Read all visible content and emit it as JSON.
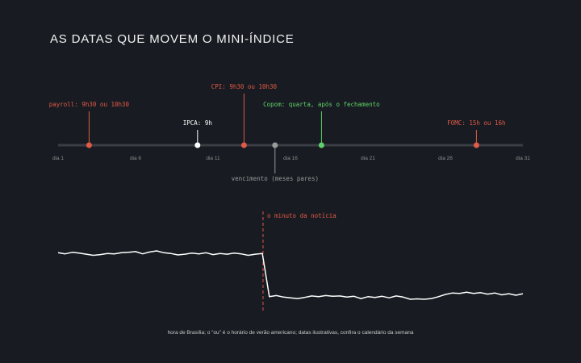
{
  "title": "AS DATAS QUE MOVEM O MINI-ÍNDICE",
  "timeline": {
    "day_labels": [
      "dia 1",
      "dia 6",
      "dia 11",
      "dia 16",
      "dia 21",
      "dia 26",
      "dia 31"
    ],
    "events": [
      {
        "id": "payroll",
        "label": "payroll: 9h30 ou 10h30",
        "day": 3,
        "color": "#e05a47",
        "dot": "#e05a47",
        "side": "above",
        "level": 2
      },
      {
        "id": "ipca",
        "label": "IPCA: 9h",
        "day": 10,
        "color": "#ffffff",
        "dot": "#ffffff",
        "side": "above",
        "level": 1
      },
      {
        "id": "cpi",
        "label": "CPI: 9h30 ou 10h30",
        "day": 13,
        "color": "#e05a47",
        "dot": "#e05a47",
        "side": "above",
        "level": 3
      },
      {
        "id": "vencimento",
        "label": "vencimento (meses pares)",
        "day": 15,
        "color": "#9a9a9a",
        "dot": "#9a9a9a",
        "side": "below",
        "level": 1
      },
      {
        "id": "copom",
        "label": "Copom: quarta, após o fechamento",
        "day": 18,
        "color": "#5fd16a",
        "dot": "#5fd16a",
        "side": "above",
        "level": 2
      },
      {
        "id": "fomc",
        "label": "FOMC: 15h ou 16h",
        "day": 28,
        "color": "#e05a47",
        "dot": "#e05a47",
        "side": "above",
        "level": 1
      }
    ]
  },
  "price_chart": {
    "annotation": "o minuto da notícia",
    "annotation_color": "#e05a47",
    "line_color": "#ffffff",
    "event_index": 30,
    "values": [
      100.2,
      99.9,
      100.3,
      100.1,
      99.8,
      99.5,
      99.7,
      100.0,
      99.9,
      100.2,
      100.3,
      100.5,
      99.9,
      100.4,
      100.7,
      100.2,
      100.0,
      99.6,
      99.8,
      100.1,
      99.9,
      100.2,
      99.7,
      100.0,
      99.8,
      100.1,
      99.9,
      99.5,
      99.8,
      100.0,
      88.3,
      88.6,
      88.2,
      88.0,
      87.8,
      88.1,
      88.5,
      88.3,
      88.6,
      88.4,
      88.5,
      88.2,
      88.4,
      87.8,
      88.3,
      88.1,
      88.4,
      88.0,
      88.5,
      88.2,
      87.6,
      87.7,
      87.6,
      87.8,
      88.3,
      88.9,
      89.3,
      89.2,
      89.5,
      89.2,
      89.4,
      89.0,
      89.3,
      88.8,
      89.1,
      88.7,
      89.1
    ]
  },
  "footnote": "hora de Brasília; o \"ou\" é o horário de verão americano; datas ilustrativas, confira o calendário da semana"
}
